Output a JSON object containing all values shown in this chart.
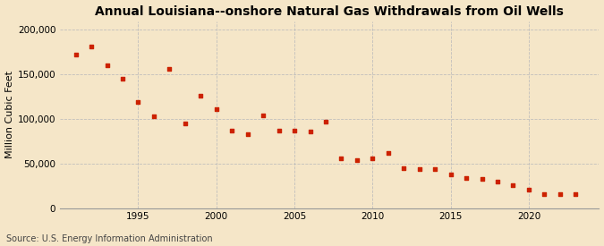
{
  "title": "Annual Louisiana--onshore Natural Gas Withdrawals from Oil Wells",
  "ylabel": "Million Cubic Feet",
  "source": "Source: U.S. Energy Information Administration",
  "background_color": "#f5e6c8",
  "marker_color": "#cc2200",
  "years": [
    1991,
    1992,
    1993,
    1994,
    1995,
    1996,
    1997,
    1998,
    1999,
    2000,
    2001,
    2002,
    2003,
    2004,
    2005,
    2006,
    2007,
    2008,
    2009,
    2010,
    2011,
    2012,
    2013,
    2014,
    2015,
    2016,
    2017,
    2018,
    2019,
    2020,
    2021,
    2022,
    2023
  ],
  "values": [
    172000,
    181000,
    160000,
    145000,
    119000,
    103000,
    156000,
    95000,
    126000,
    111000,
    87000,
    83000,
    104000,
    87000,
    87000,
    86000,
    97000,
    56000,
    54000,
    56000,
    62000,
    45000,
    44000,
    44000,
    38000,
    34000,
    33000,
    30000,
    26000,
    21000,
    16000,
    16000,
    16000
  ],
  "xlim": [
    1990.0,
    2024.5
  ],
  "ylim": [
    0,
    210000
  ],
  "yticks": [
    0,
    50000,
    100000,
    150000,
    200000
  ],
  "xticks": [
    1995,
    2000,
    2005,
    2010,
    2015,
    2020
  ],
  "grid_color": "#bbbbbb",
  "title_fontsize": 10,
  "ylabel_fontsize": 8,
  "tick_fontsize": 7.5,
  "source_fontsize": 7
}
